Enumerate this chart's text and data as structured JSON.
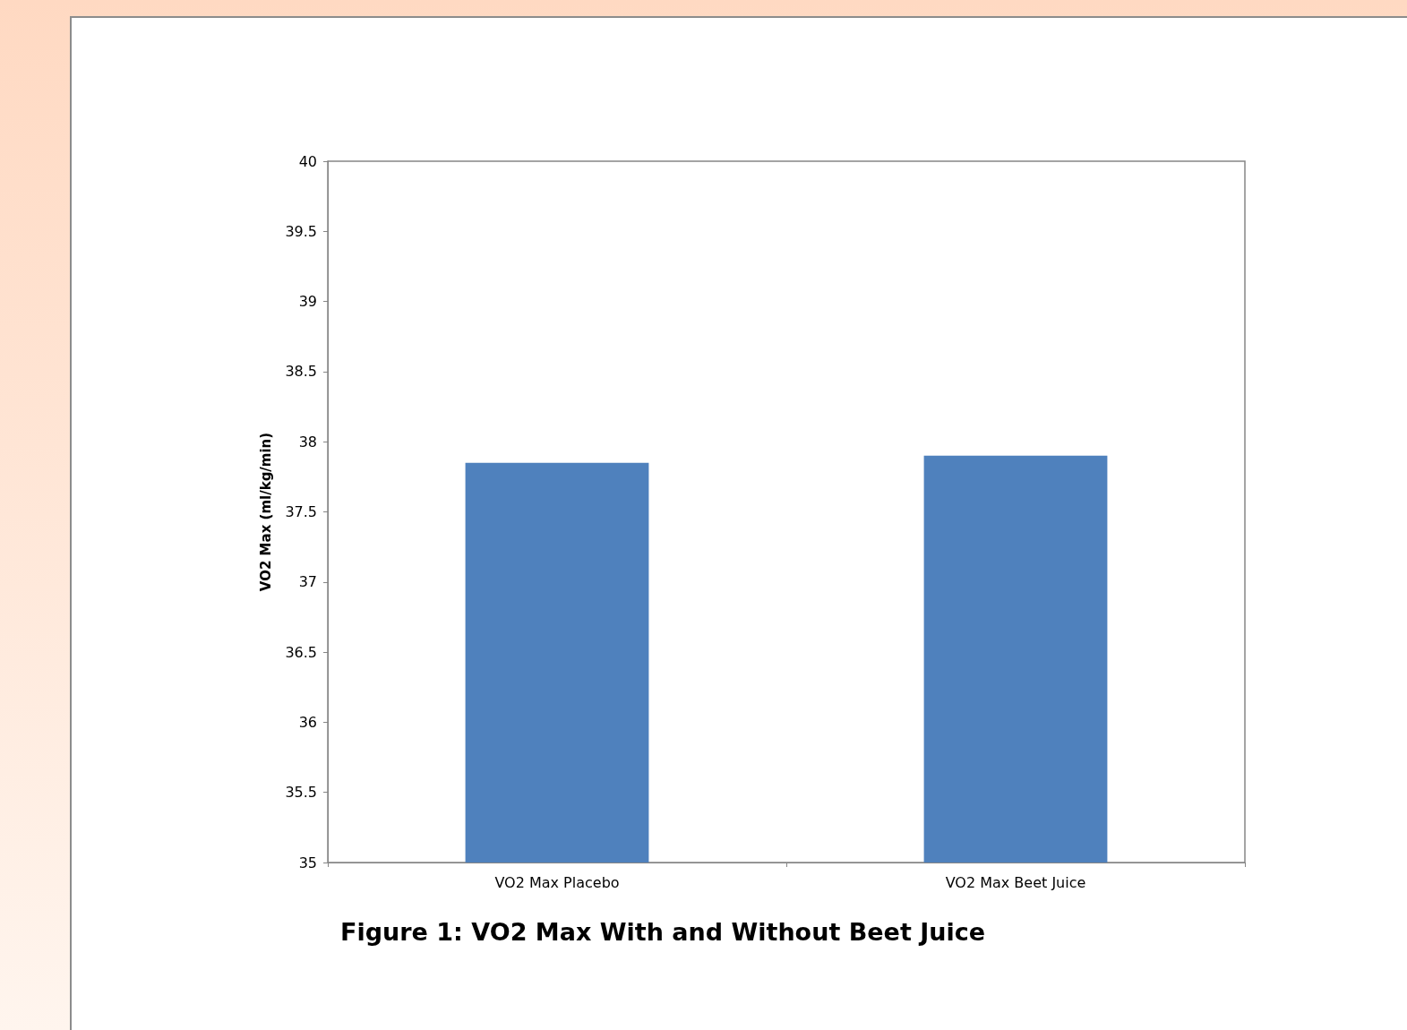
{
  "chart_data": {
    "type": "bar",
    "title": "Figure 1: VO2 Max With and Without Beet Juice",
    "ylabel": "VO2 Max (ml/kg/min)",
    "categories": [
      "VO2 Max Placebo",
      "VO2 Max Beet Juice"
    ],
    "values": [
      37.85,
      37.9
    ],
    "color": "#4f81bd",
    "ylim": [
      35,
      40
    ],
    "yticks": [
      35,
      35.5,
      36,
      36.5,
      37,
      37.5,
      38,
      38.5,
      39,
      39.5,
      40
    ],
    "grid": false
  }
}
